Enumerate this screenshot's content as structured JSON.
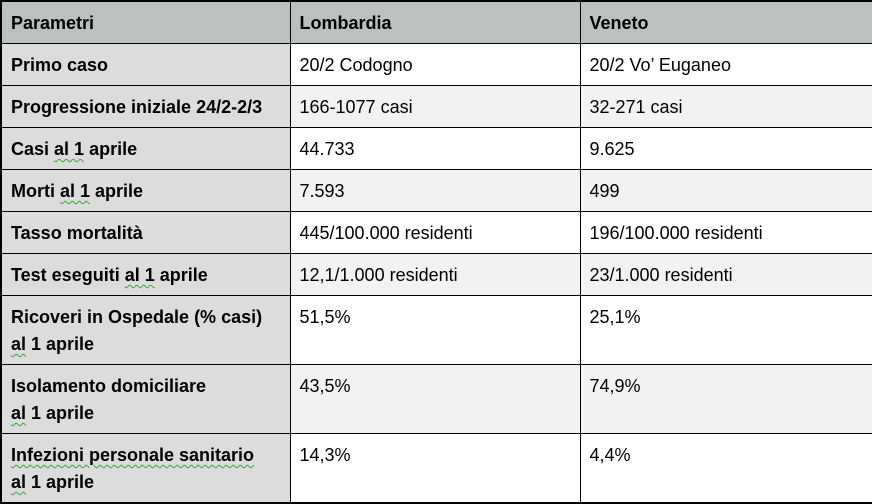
{
  "header": {
    "param": "Parametri",
    "col1": "Lombardia",
    "col2": "Veneto"
  },
  "colors": {
    "header_bg": "#bcc0bf",
    "param_col_bg": "#dcdcdc",
    "alt_row_bg": "#f2f2f2",
    "border": "#000000",
    "grammar_squiggle": "#3aa43a",
    "text": "#000000"
  },
  "rows": [
    {
      "param_lines": [
        [
          {
            "t": "Primo caso"
          }
        ]
      ],
      "lombardia": "20/2 Codogno",
      "veneto": "20/2 Vo’ Euganeo",
      "shaded": false
    },
    {
      "param_lines": [
        [
          {
            "t": "Progressione iniziale 24/2-2/3"
          }
        ]
      ],
      "lombardia": "166-1077 casi",
      "veneto": "32-271 casi",
      "shaded": true
    },
    {
      "param_lines": [
        [
          {
            "t": "Casi "
          },
          {
            "t": "al 1",
            "grammar": true
          },
          {
            "t": " aprile"
          }
        ]
      ],
      "lombardia": "44.733",
      "veneto": "9.625",
      "shaded": false
    },
    {
      "param_lines": [
        [
          {
            "t": "Morti "
          },
          {
            "t": "al 1",
            "grammar": true
          },
          {
            "t": " aprile"
          }
        ]
      ],
      "lombardia": "7.593",
      "veneto": "499",
      "shaded": true
    },
    {
      "param_lines": [
        [
          {
            "t": "Tasso mortalità"
          }
        ]
      ],
      "lombardia": "445/100.000 residenti",
      "veneto": "196/100.000 residenti",
      "shaded": false
    },
    {
      "param_lines": [
        [
          {
            "t": "Test eseguiti "
          },
          {
            "t": "al 1",
            "grammar": true
          },
          {
            "t": " aprile"
          }
        ]
      ],
      "lombardia": "12,1/1.000 residenti",
      "veneto": "23/1.000 residenti",
      "shaded": true
    },
    {
      "param_lines": [
        [
          {
            "t": "Ricoveri in Ospedale (% casi)"
          }
        ],
        [
          {
            "t": "al",
            "grammar": true
          },
          {
            "t": " 1 aprile"
          }
        ]
      ],
      "lombardia": "51,5%",
      "veneto": "25,1%",
      "shaded": false
    },
    {
      "param_lines": [
        [
          {
            "t": "Isolamento domiciliare"
          }
        ],
        [
          {
            "t": "al",
            "grammar": true
          },
          {
            "t": " 1 aprile"
          }
        ]
      ],
      "lombardia": "43,5%",
      "veneto": "74,9%",
      "shaded": true
    },
    {
      "param_lines": [
        [
          {
            "t": "Infezioni personale sanitario",
            "grammar": true
          }
        ],
        [
          {
            "t": "al",
            "grammar": true
          },
          {
            "t": " 1 aprile"
          }
        ]
      ],
      "lombardia": "14,3%",
      "veneto": "4,4%",
      "shaded": false
    }
  ]
}
